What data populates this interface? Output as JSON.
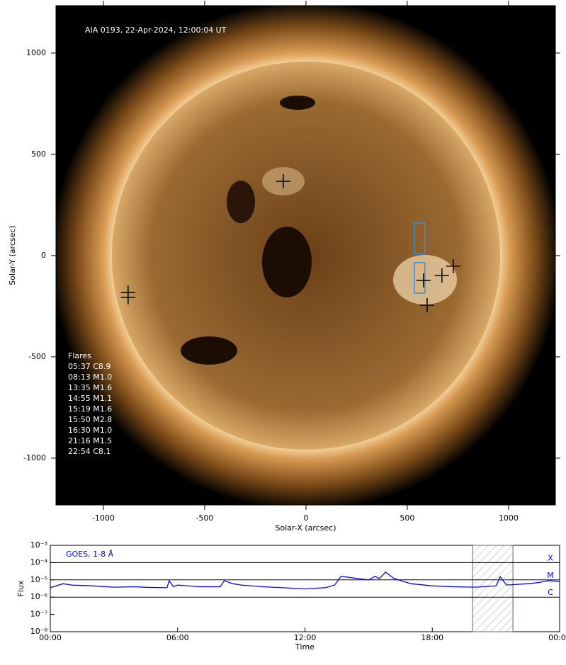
{
  "chart_data": [
    {
      "type": "image",
      "title": "AIA 0193, 22-Apr-2024, 12:00:04 UT",
      "xlabel": "Solar-X (arcsec)",
      "ylabel": "Solar-Y (arcsec)",
      "xlim": [
        -1234,
        1231
      ],
      "ylim": [
        -1231,
        1234
      ],
      "xticks": [
        -1000,
        -500,
        0,
        500,
        1000
      ],
      "yticks": [
        -1000,
        -500,
        0,
        500,
        1000
      ],
      "points": {
        "x": [
          -112,
          -878,
          -878,
          727,
          580,
          671,
          598
        ],
        "y": [
          367,
          -182,
          -206,
          -52,
          -122,
          -98,
          -245
        ],
        "color": "#000000"
      },
      "boxes": [
        {
          "x": [
            535,
            587
          ],
          "y": [
            10,
            161
          ]
        },
        {
          "x": [
            535,
            587
          ],
          "y": [
            -185,
            -35
          ]
        }
      ],
      "box_color": "#3a8fd9",
      "annotation_title": "Flares",
      "flares": [
        "05:37 C8.9",
        "08:13 M1.0",
        "13:35 M1.6",
        "14:55 M1.1",
        "15:19 M1.6",
        "15:50 M2.8",
        "16:30 M1.0",
        "21:16 M1.5",
        "22:54 C8.1"
      ]
    },
    {
      "type": "line",
      "log_y": true,
      "xlabel": "Time",
      "ylabel": "Flux",
      "xlim": [
        0,
        24
      ],
      "ylim": [
        1e-08,
        0.001
      ],
      "xticks": [
        {
          "value": 0,
          "label": "00:00"
        },
        {
          "value": 6,
          "label": "06:00"
        },
        {
          "value": 12,
          "label": "12:00"
        },
        {
          "value": 18,
          "label": "18:00"
        },
        {
          "value": 24,
          "label": "00:00"
        }
      ],
      "yticks": [
        {
          "value": 1e-08,
          "label": "10⁻⁸"
        },
        {
          "value": 1e-07,
          "label": "10⁻⁷"
        },
        {
          "value": 1e-06,
          "label": "10⁻⁶"
        },
        {
          "value": 1e-05,
          "label": "10⁻⁵"
        },
        {
          "value": 0.0001,
          "label": "10⁻⁴"
        },
        {
          "value": 0.001,
          "label": "10⁻³"
        }
      ],
      "levels": [
        {
          "value": 0.0001,
          "label": "X"
        },
        {
          "value": 1e-05,
          "label": "M"
        },
        {
          "value": 1e-06,
          "label": "C"
        }
      ],
      "highlight": [
        19.9,
        21.8
      ],
      "series": [
        {
          "name": "GOES, 1-8 Å",
          "color": "#0000ff",
          "x": [
            0,
            0.6,
            1,
            2,
            3,
            4,
            4.5,
            5.5,
            5.6,
            5.8,
            6,
            7,
            8,
            8.2,
            8.6,
            9,
            10,
            11,
            12,
            13,
            13.4,
            13.7,
            14.5,
            15,
            15.3,
            15.5,
            15.8,
            16.2,
            17,
            18,
            19,
            20,
            21,
            21.2,
            21.5,
            22.5,
            23,
            23.5,
            24
          ],
          "values": [
            3.5e-06,
            6e-06,
            5e-06,
            4.5e-06,
            3.8e-06,
            4e-06,
            3.7e-06,
            3.5e-06,
            9e-06,
            4e-06,
            5e-06,
            4e-06,
            4e-06,
            9e-06,
            6e-06,
            5e-06,
            4e-06,
            3.5e-06,
            3e-06,
            3.6e-06,
            5e-06,
            1.6e-05,
            1.2e-05,
            1e-05,
            1.6e-05,
            1.2e-05,
            2.8e-05,
            1.2e-05,
            6e-06,
            4.5e-06,
            4e-06,
            3.8e-06,
            4.5e-06,
            1.5e-05,
            5e-06,
            6e-06,
            7e-06,
            9e-06,
            8e-06
          ]
        }
      ]
    }
  ]
}
